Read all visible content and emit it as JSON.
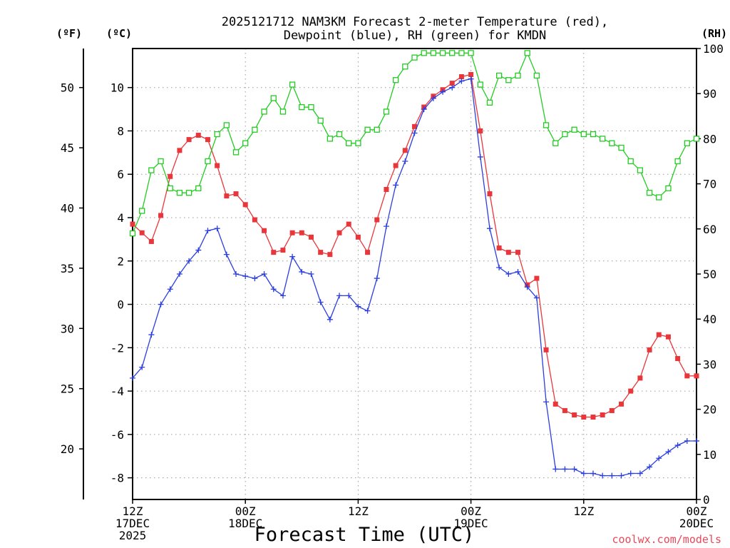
{
  "chart_data": {
    "type": "line",
    "title_line1": "2025121712 NAM3KM Forecast 2-meter Temperature (red),",
    "title_line2": "Dewpoint (blue), RH (green) for KMDN",
    "xlabel": "Forecast Time (UTC)",
    "credit": "coolwx.com/models",
    "units": {
      "fahrenheit": "(ºF)",
      "celsius": "(ºC)",
      "rh": "(RH)"
    },
    "xlim_hours": [
      0,
      60
    ],
    "x_ticks": [
      {
        "hour": 0,
        "line1": "12Z",
        "line2": "17DEC",
        "line3": "2025"
      },
      {
        "hour": 12,
        "line1": "00Z",
        "line2": "18DEC",
        "line3": ""
      },
      {
        "hour": 24,
        "line1": "12Z",
        "line2": "",
        "line3": ""
      },
      {
        "hour": 36,
        "line1": "00Z",
        "line2": "19DEC",
        "line3": ""
      },
      {
        "hour": 48,
        "line1": "12Z",
        "line2": "",
        "line3": ""
      },
      {
        "hour": 60,
        "line1": "00Z",
        "line2": "20DEC",
        "line3": ""
      }
    ],
    "left_axis_c": {
      "ylim": [
        -9,
        11.8
      ],
      "ticks": [
        -8,
        -6,
        -4,
        -2,
        0,
        2,
        4,
        6,
        8,
        10
      ]
    },
    "far_left_axis_f": {
      "ticks": [
        20,
        25,
        30,
        35,
        40,
        45,
        50
      ]
    },
    "right_axis_rh": {
      "ylim": [
        0,
        100
      ],
      "ticks": [
        0,
        10,
        20,
        30,
        40,
        50,
        60,
        70,
        80,
        90,
        100
      ]
    },
    "series": [
      {
        "name": "Temperature",
        "units": "C",
        "axis": "left",
        "color": "#e8363a",
        "marker": "filled-square",
        "values": [
          3.7,
          3.3,
          2.9,
          4.1,
          5.9,
          7.1,
          7.6,
          7.8,
          7.6,
          6.4,
          5.0,
          5.1,
          4.6,
          3.9,
          3.4,
          2.4,
          2.5,
          3.3,
          3.3,
          3.1,
          2.4,
          2.3,
          3.3,
          3.7,
          3.1,
          2.4,
          3.9,
          5.3,
          6.4,
          7.1,
          8.2,
          9.1,
          9.6,
          9.9,
          10.2,
          10.5,
          10.6,
          8.0,
          5.1,
          2.6,
          2.4,
          2.4,
          0.9,
          1.2,
          -2.1,
          -4.6,
          -4.9,
          -5.1,
          -5.2,
          -5.2,
          -5.1,
          -4.9,
          -4.6,
          -4.0,
          -3.4,
          -2.1,
          -1.4,
          -1.5,
          -2.5,
          -3.3,
          -3.3
        ]
      },
      {
        "name": "Dewpoint",
        "units": "C",
        "axis": "left",
        "color": "#2b3ee0",
        "marker": "plus",
        "values": [
          -3.4,
          -2.9,
          -1.4,
          0.0,
          0.7,
          1.4,
          2.0,
          2.5,
          3.4,
          3.5,
          2.3,
          1.4,
          1.3,
          1.2,
          1.4,
          0.7,
          0.4,
          2.2,
          1.5,
          1.4,
          0.1,
          -0.7,
          0.4,
          0.4,
          -0.1,
          -0.3,
          1.2,
          3.6,
          5.5,
          6.6,
          7.9,
          9.0,
          9.5,
          9.8,
          10.0,
          10.3,
          10.4,
          6.8,
          3.5,
          1.7,
          1.4,
          1.5,
          0.8,
          0.3,
          -4.5,
          -7.6,
          -7.6,
          -7.6,
          -7.8,
          -7.8,
          -7.9,
          -7.9,
          -7.9,
          -7.8,
          -7.8,
          -7.5,
          -7.1,
          -6.8,
          -6.5,
          -6.3,
          -6.3
        ]
      },
      {
        "name": "RH",
        "units": "%",
        "axis": "right",
        "color": "#22cc22",
        "marker": "open-square",
        "values": [
          59,
          64,
          73,
          75,
          69,
          68,
          68,
          69,
          75,
          81,
          83,
          77,
          79,
          82,
          86,
          89,
          86,
          92,
          87,
          87,
          84,
          80,
          81,
          79,
          79,
          82,
          82,
          86,
          93,
          96,
          98,
          99,
          99,
          99,
          99,
          99,
          99,
          92,
          88,
          94,
          93,
          94,
          99,
          94,
          83,
          79,
          81,
          82,
          81,
          81,
          80,
          79,
          78,
          75,
          73,
          68,
          67,
          69,
          75,
          79,
          80
        ]
      }
    ]
  }
}
